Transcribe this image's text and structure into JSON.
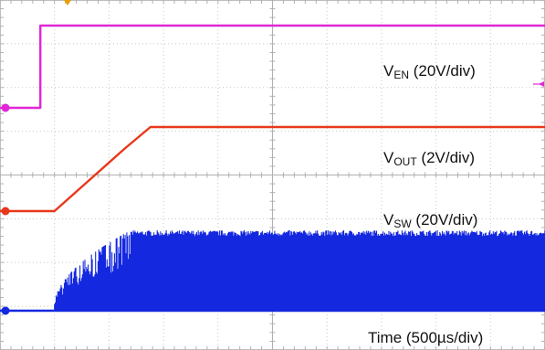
{
  "chart_data": {
    "type": "line",
    "title": "",
    "xlabel": "Time (500µs/div)",
    "grid": true,
    "x_unit": "µs",
    "x_range": [
      0,
      5000
    ],
    "series": [
      {
        "label_main": "V",
        "label_sub": "EN",
        "label_scale": " (20V/div)",
        "color": "#e026d6",
        "points": [
          [
            0,
            0
          ],
          [
            370,
            0
          ],
          [
            370,
            1
          ],
          [
            5000,
            1
          ]
        ]
      },
      {
        "label_main": "V",
        "label_sub": "OUT",
        "label_scale": " (2V/div)",
        "color": "#e8381a",
        "points": [
          [
            0,
            0
          ],
          [
            500,
            0
          ],
          [
            1150,
            0.75
          ],
          [
            1380,
            1
          ],
          [
            5000,
            1
          ]
        ]
      },
      {
        "label_main": "V",
        "label_sub": "SW",
        "label_scale": " (20V/div)",
        "color": "#1428e0",
        "switching": true,
        "switch_start": 500,
        "switch_full": 1200
      }
    ],
    "markers": {
      "trigger_marker_color": "#e8a000",
      "ch1_marker_color": "#e026d6",
      "ch2_marker_color": "#e8381a",
      "ch3_marker_color": "#1428e0"
    }
  }
}
